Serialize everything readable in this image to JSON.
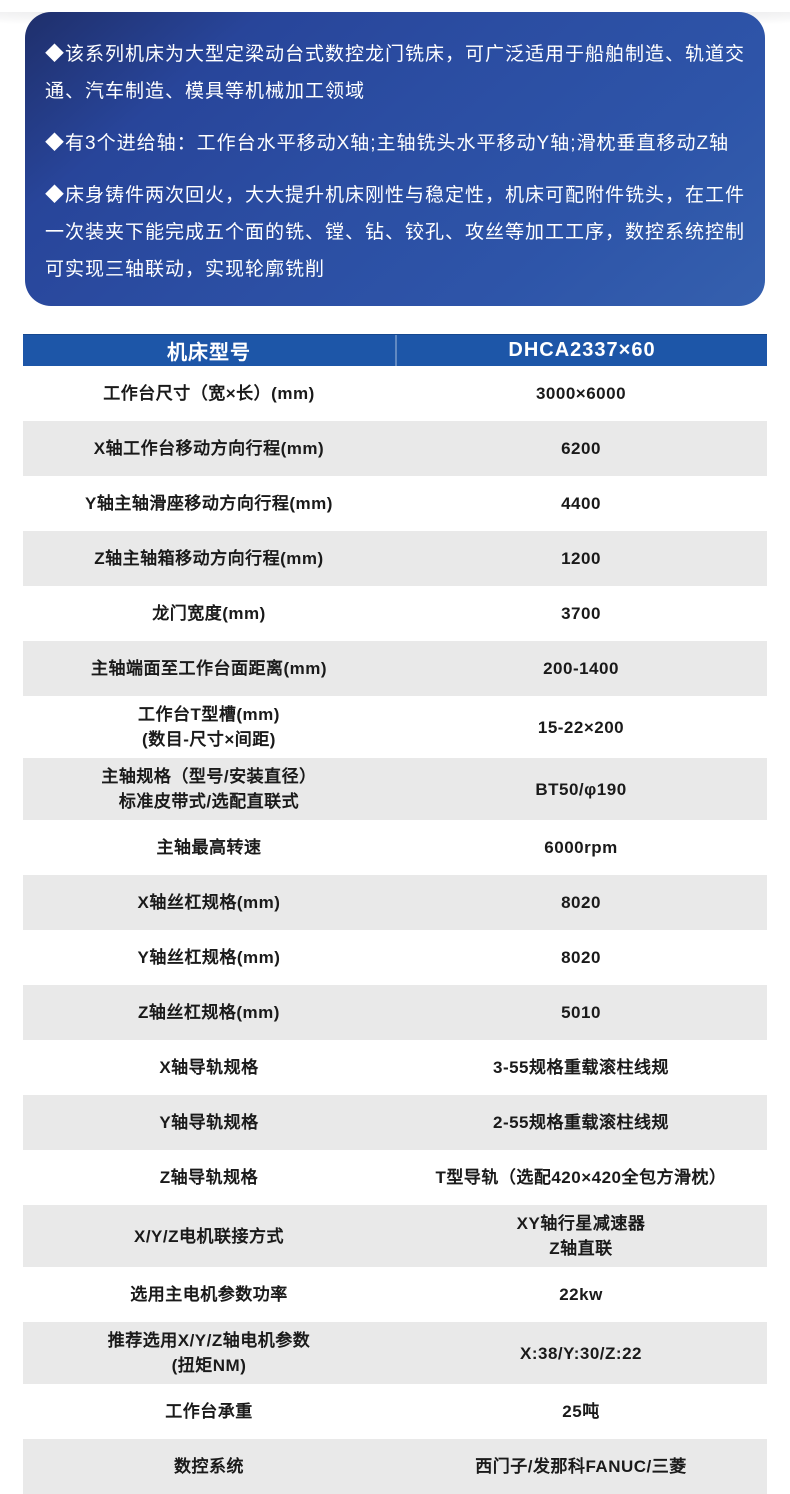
{
  "colors": {
    "panel_gradient_dark": "#1f2f6b",
    "panel_gradient_light": "#2e55a9",
    "table_header_blue": "#1d56a8",
    "row_alt_gray": "#e9e9e9",
    "text_dark": "#1a1a1a",
    "text_light": "#ffffff"
  },
  "intro_panel": {
    "bullets": [
      "◆该系列机床为大型定梁动台式数控龙门铣床，可广泛适用于船舶制造、轨道交通、汽车制造、模具等机械加工领域",
      "◆有3个进给轴：工作台水平移动X轴;主轴铣头水平移动Y轴;滑枕垂直移动Z轴",
      "◆床身铸件两次回火，大大提升机床刚性与稳定性，机床可配附件铣头，在工件一次装夹下能完成五个面的铣、镗、钻、铰孔、攻丝等加工工序，数控系统控制可实现三轴联动，实现轮廓铣削"
    ]
  },
  "spec_table": {
    "header": {
      "param_column": "机床型号",
      "model_column": "DHCA2337×60"
    },
    "rows": [
      {
        "label": "工作台尺寸（宽×长）(mm)",
        "value": "3000×6000"
      },
      {
        "label": "X轴工作台移动方向行程(mm)",
        "value": "6200"
      },
      {
        "label": "Y轴主轴滑座移动方向行程(mm)",
        "value": "4400"
      },
      {
        "label": "Z轴主轴箱移动方向行程(mm)",
        "value": "1200"
      },
      {
        "label": "龙门宽度(mm)",
        "value": "3700"
      },
      {
        "label": "主轴端面至工作台面距离(mm)",
        "value": "200-1400"
      },
      {
        "label": "工作台T型槽(mm)",
        "label2": "(数目-尺寸×间距)",
        "value": "15-22×200"
      },
      {
        "label": "主轴规格（型号/安装直径）",
        "label2": "标准皮带式/选配直联式",
        "value": "BT50/φ190"
      },
      {
        "label": "主轴最高转速",
        "value": "6000rpm"
      },
      {
        "label": "X轴丝杠规格(mm)",
        "value": "8020"
      },
      {
        "label": "Y轴丝杠规格(mm)",
        "value": "8020"
      },
      {
        "label": "Z轴丝杠规格(mm)",
        "value": "5010"
      },
      {
        "label": "X轴导轨规格",
        "value": "3-55规格重载滚柱线规"
      },
      {
        "label": "Y轴导轨规格",
        "value": "2-55规格重载滚柱线规"
      },
      {
        "label": "Z轴导轨规格",
        "value": "T型导轨（选配420×420全包方滑枕）"
      },
      {
        "label": "X/Y/Z电机联接方式",
        "value": "XY轴行星减速器",
        "value2": "Z轴直联"
      },
      {
        "label": "选用主电机参数功率",
        "value": "22kw"
      },
      {
        "label": "推荐选用X/Y/Z轴电机参数",
        "label2": "(扭矩NM)",
        "value": "X:38/Y:30/Z:22"
      },
      {
        "label": "工作台承重",
        "value": "25吨"
      },
      {
        "label": "数控系统",
        "value": "西门子/发那科FANUC/三菱"
      }
    ]
  }
}
